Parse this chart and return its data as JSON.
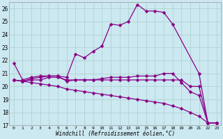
{
  "xlabel": "Windchill (Refroidissement éolien,°C)",
  "bg_color": "#cce8f0",
  "grid_color": "#aacfcc",
  "line_color": "#880088",
  "xlim": [
    -0.5,
    23.5
  ],
  "ylim": [
    17,
    26.5
  ],
  "yticks": [
    17,
    18,
    19,
    20,
    21,
    22,
    23,
    24,
    25,
    26
  ],
  "xticks": [
    0,
    1,
    2,
    3,
    4,
    5,
    6,
    7,
    8,
    9,
    10,
    11,
    12,
    13,
    14,
    15,
    16,
    17,
    18,
    19,
    20,
    21,
    22,
    23
  ],
  "series": [
    {
      "x": [
        0,
        1,
        2,
        3,
        4,
        5,
        6,
        7,
        8,
        9,
        10,
        11,
        12,
        13,
        14,
        15,
        16,
        17,
        18,
        21,
        22,
        23
      ],
      "y": [
        21.8,
        20.5,
        20.7,
        20.8,
        20.8,
        20.8,
        20.7,
        22.5,
        22.2,
        22.7,
        23.1,
        24.8,
        24.7,
        25.0,
        26.3,
        25.8,
        25.8,
        25.7,
        24.8,
        21.0,
        17.2,
        17.2
      ]
    },
    {
      "x": [
        0,
        1,
        2,
        3,
        4,
        5,
        6,
        7,
        8,
        9,
        10,
        11,
        12,
        13,
        14,
        15,
        16,
        17,
        18,
        19,
        20,
        21,
        22,
        23
      ],
      "y": [
        20.5,
        20.4,
        20.6,
        20.7,
        20.8,
        20.8,
        20.4,
        20.5,
        20.5,
        20.5,
        20.6,
        20.7,
        20.7,
        20.7,
        20.8,
        20.8,
        20.8,
        21.0,
        21.0,
        20.3,
        19.6,
        19.3,
        17.2,
        17.2
      ]
    },
    {
      "x": [
        0,
        1,
        2,
        3,
        4,
        5,
        6,
        7,
        8,
        9,
        10,
        11,
        12,
        13,
        14,
        15,
        16,
        17,
        18,
        19,
        20,
        21,
        22,
        23
      ],
      "y": [
        20.5,
        20.4,
        20.5,
        20.5,
        20.7,
        20.7,
        20.5,
        20.5,
        20.5,
        20.5,
        20.5,
        20.5,
        20.5,
        20.5,
        20.5,
        20.5,
        20.5,
        20.5,
        20.5,
        20.5,
        20.0,
        20.0,
        17.2,
        17.2
      ]
    },
    {
      "x": [
        0,
        1,
        2,
        3,
        4,
        5,
        6,
        7,
        8,
        9,
        10,
        11,
        12,
        13,
        14,
        15,
        16,
        17,
        18,
        19,
        20,
        21,
        22,
        23
      ],
      "y": [
        20.5,
        20.4,
        20.3,
        20.2,
        20.1,
        20.0,
        19.8,
        19.7,
        19.6,
        19.5,
        19.4,
        19.3,
        19.2,
        19.1,
        19.0,
        18.9,
        18.8,
        18.7,
        18.5,
        18.3,
        18.0,
        17.7,
        17.2,
        17.2
      ]
    }
  ]
}
